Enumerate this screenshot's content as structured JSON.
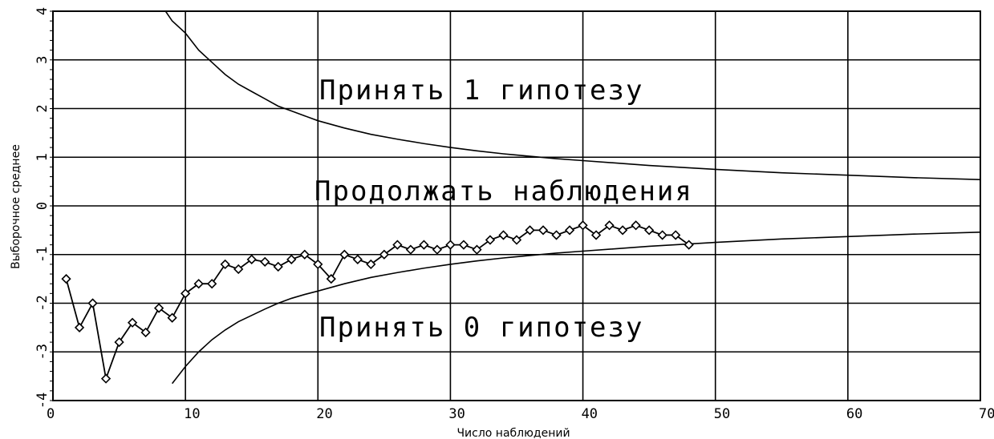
{
  "chart_data": {
    "type": "line",
    "xlabel": "Число наблюдений",
    "ylabel": "Выборочное среднее",
    "xlim": [
      0,
      70
    ],
    "ylim": [
      -4,
      4
    ],
    "xticks": [
      "0",
      "10",
      "20",
      "30",
      "40",
      "50",
      "60",
      "70"
    ],
    "yticks": [
      "-4",
      "-3",
      "-2",
      "-1",
      "0",
      "1",
      "2",
      "3",
      "4"
    ],
    "grid": true,
    "annotations": {
      "accept_h1": "Принять 1 гипотезу",
      "continue": "Продолжать наблюдения",
      "accept_h0": "Принять 0 гипотезу"
    },
    "series": [
      {
        "x": [
          1,
          2,
          3,
          4,
          5,
          6,
          7,
          8,
          9,
          10,
          11,
          12,
          13,
          14,
          15,
          16,
          17,
          18,
          19,
          20,
          21,
          22,
          23,
          24,
          25,
          26,
          27,
          28,
          29,
          30,
          31,
          32,
          33,
          34,
          35,
          36,
          37,
          38,
          39,
          40,
          41,
          42,
          43,
          44,
          45,
          46,
          47,
          48
        ],
        "values": [
          -1.5,
          -2.5,
          -2.0,
          -3.55,
          -2.8,
          -2.4,
          -2.6,
          -2.1,
          -2.3,
          -1.8,
          -1.6,
          -1.6,
          -1.2,
          -1.3,
          -1.1,
          -1.15,
          -1.25,
          -1.1,
          -1.0,
          -1.2,
          -1.5,
          -1.0,
          -1.1,
          -1.2,
          -1.0,
          -0.8,
          -0.9,
          -0.8,
          -0.9,
          -0.8,
          -0.8,
          -0.9,
          -0.7,
          -0.6,
          -0.7,
          -0.5,
          -0.5,
          -0.6,
          -0.5,
          -0.4,
          -0.6,
          -0.4,
          -0.5,
          -0.4,
          -0.5,
          -0.6,
          -0.6,
          -0.8
        ]
      },
      {
        "x": [
          8.5,
          9,
          10,
          11,
          12,
          13,
          14,
          15,
          16,
          17,
          18,
          19,
          20,
          22,
          24,
          26,
          28,
          30,
          32,
          34,
          36,
          38,
          40,
          45,
          50,
          55,
          60,
          65,
          70
        ],
        "values": [
          4.0,
          3.8,
          3.55,
          3.2,
          2.95,
          2.7,
          2.5,
          2.35,
          2.2,
          2.05,
          1.95,
          1.85,
          1.75,
          1.6,
          1.47,
          1.37,
          1.28,
          1.2,
          1.13,
          1.07,
          1.02,
          0.97,
          0.93,
          0.83,
          0.75,
          0.68,
          0.63,
          0.58,
          0.54
        ]
      },
      {
        "x": [
          9,
          10,
          11,
          12,
          13,
          14,
          15,
          16,
          17,
          18,
          19,
          20,
          22,
          24,
          26,
          28,
          30,
          32,
          34,
          36,
          38,
          40,
          45,
          50,
          55,
          60,
          65,
          70
        ],
        "values": [
          -3.65,
          -3.3,
          -3.0,
          -2.75,
          -2.55,
          -2.38,
          -2.25,
          -2.12,
          -2.0,
          -1.9,
          -1.82,
          -1.75,
          -1.6,
          -1.47,
          -1.37,
          -1.28,
          -1.2,
          -1.13,
          -1.07,
          -1.02,
          -0.97,
          -0.93,
          -0.83,
          -0.75,
          -0.68,
          -0.63,
          -0.58,
          -0.54
        ]
      }
    ]
  }
}
